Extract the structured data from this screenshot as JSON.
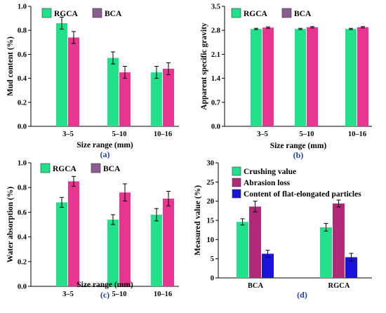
{
  "colors": {
    "rgca": "#21e08a",
    "bca": "#e8358f",
    "crushing": "#21e08a",
    "abrasion": "#b12a78",
    "flat": "#1a14d8",
    "legend_bca": "#8a5d8f",
    "panel_label": "#1f3f9f"
  },
  "chart_data": [
    {
      "id": "a",
      "type": "bar",
      "panel_label": "(a)",
      "ylabel": "Mud content (%)",
      "xlabel": "Size range (mm)",
      "categories": [
        "3–5",
        "5–10",
        "10–16"
      ],
      "ylim": [
        0,
        1.0
      ],
      "yticks": [
        "0.0",
        "0.2",
        "0.4",
        "0.6",
        "0.8",
        "1.0"
      ],
      "legend": [
        "RGCA",
        "BCA"
      ],
      "series": [
        {
          "name": "RGCA",
          "values": [
            0.86,
            0.57,
            0.45
          ],
          "errors": [
            0.05,
            0.05,
            0.05
          ]
        },
        {
          "name": "BCA",
          "values": [
            0.74,
            0.45,
            0.48
          ],
          "errors": [
            0.05,
            0.05,
            0.05
          ]
        }
      ]
    },
    {
      "id": "b",
      "type": "bar",
      "panel_label": "(b)",
      "ylabel": "Apparent specific gravity",
      "xlabel": "Size range (mm)",
      "categories": [
        "3–5",
        "5–10",
        "10–16"
      ],
      "ylim": [
        0,
        3.5
      ],
      "yticks": [
        "0.0",
        "0.7",
        "1.4",
        "2.1",
        "2.8",
        "3.5"
      ],
      "legend": [
        "RGCA",
        "BCA"
      ],
      "series": [
        {
          "name": "RGCA",
          "values": [
            2.84,
            2.84,
            2.84
          ],
          "errors": [
            0.02,
            0.02,
            0.02
          ]
        },
        {
          "name": "BCA",
          "values": [
            2.88,
            2.89,
            2.89
          ],
          "errors": [
            0.02,
            0.02,
            0.02
          ]
        }
      ]
    },
    {
      "id": "c",
      "type": "bar",
      "panel_label": "(c)",
      "ylabel": "Water absorption (%)",
      "xlabel": "Size range (mm)",
      "categories": [
        "3–5",
        "5–10",
        "10–16"
      ],
      "ylim": [
        0,
        1.0
      ],
      "yticks": [
        "0.0",
        "0.2",
        "0.4",
        "0.6",
        "0.8",
        "1.0"
      ],
      "legend": [
        "RGCA",
        "BCA"
      ],
      "series": [
        {
          "name": "RGCA",
          "values": [
            0.68,
            0.54,
            0.58
          ],
          "errors": [
            0.04,
            0.04,
            0.05
          ]
        },
        {
          "name": "BCA",
          "values": [
            0.85,
            0.76,
            0.71
          ],
          "errors": [
            0.04,
            0.07,
            0.06
          ]
        }
      ]
    },
    {
      "id": "d",
      "type": "bar",
      "panel_label": "(d)",
      "ylabel": "Measured value (%)",
      "xlabel": "",
      "categories": [
        "BCA",
        "RGCA"
      ],
      "ylim": [
        0,
        30
      ],
      "yticks": [
        "0",
        "5",
        "10",
        "15",
        "20",
        "25",
        "30"
      ],
      "legend": [
        "Crushing value",
        "Abrasion loss",
        "Content of flat-elongated particles"
      ],
      "series": [
        {
          "name": "Crushing value",
          "values": [
            14.6,
            13.2
          ],
          "errors": [
            0.8,
            1.0
          ]
        },
        {
          "name": "Abrasion loss",
          "values": [
            18.6,
            19.4
          ],
          "errors": [
            1.4,
            0.9
          ]
        },
        {
          "name": "Content of flat-elongated particles",
          "values": [
            6.3,
            5.4
          ],
          "errors": [
            0.9,
            1.0
          ]
        }
      ]
    }
  ]
}
